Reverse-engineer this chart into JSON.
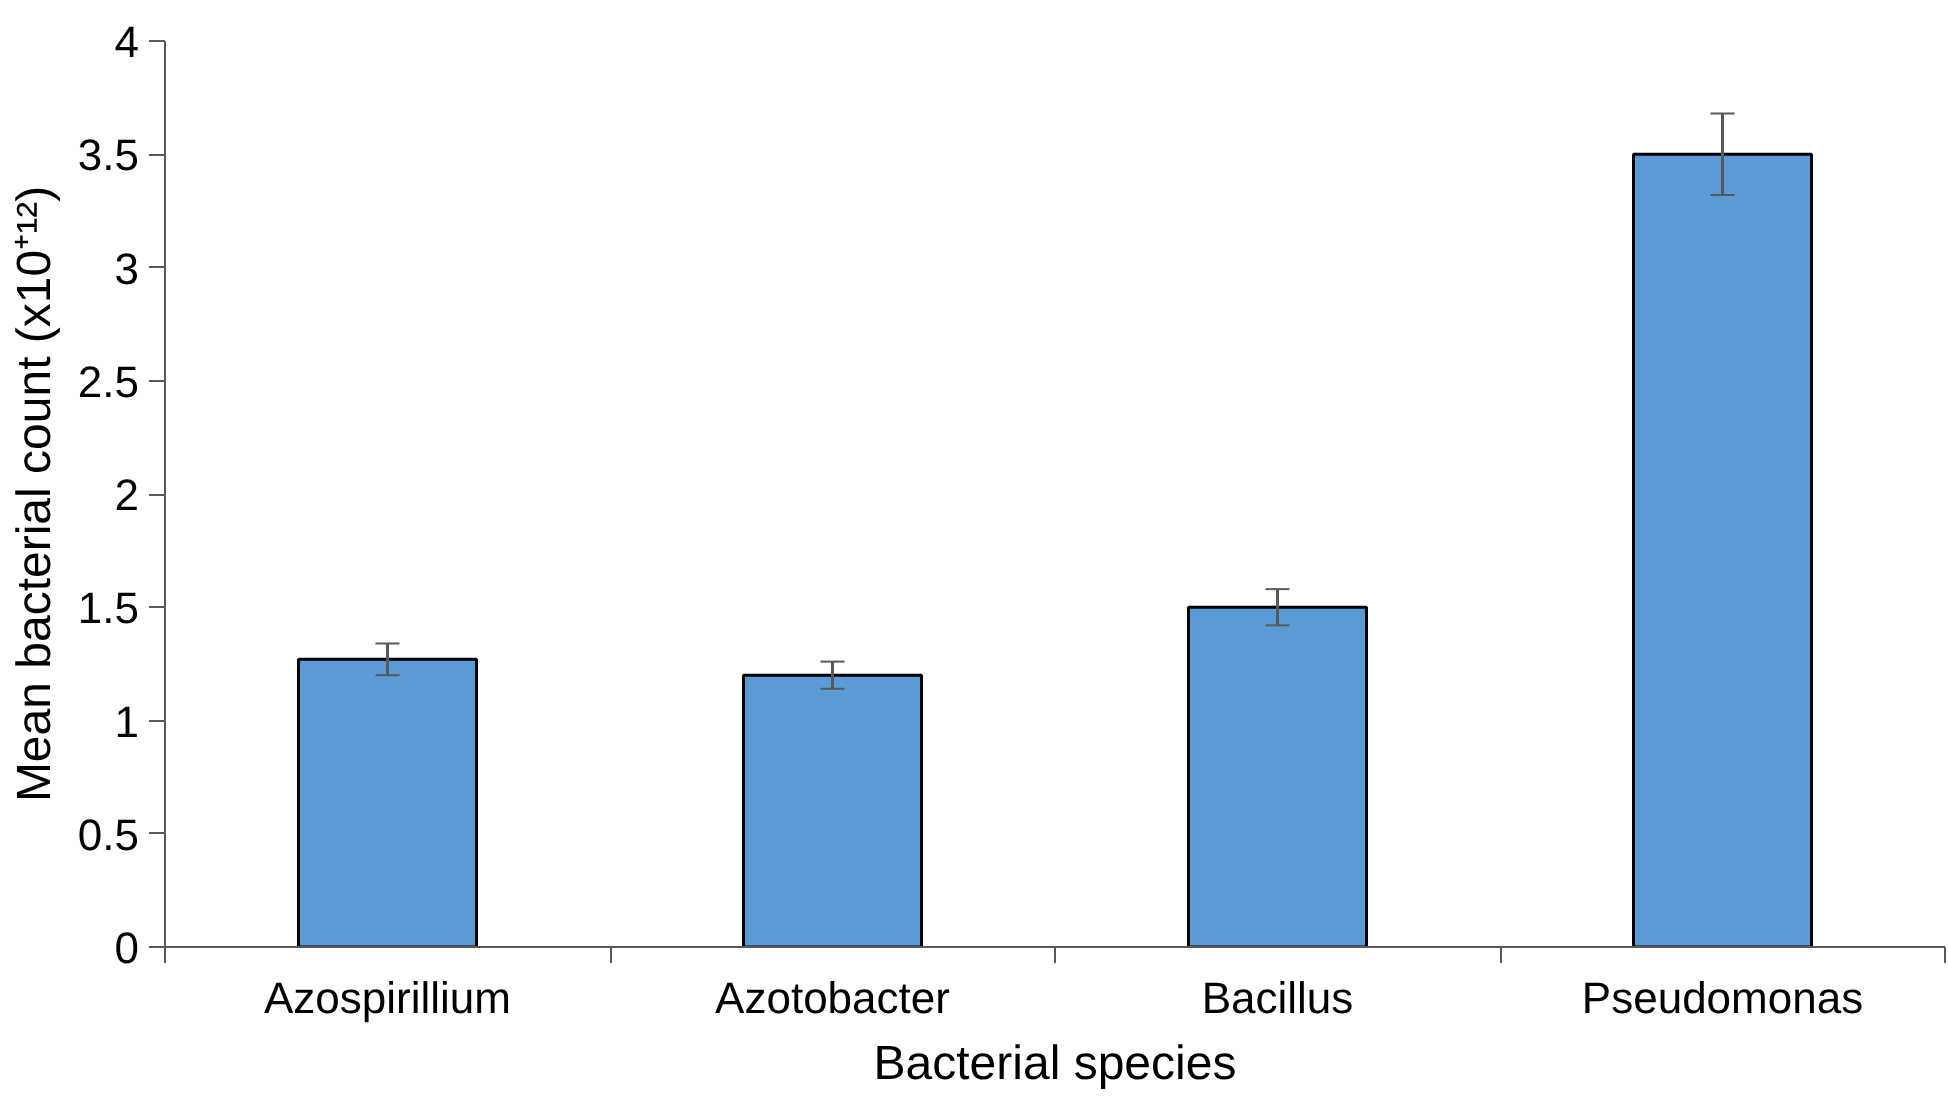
{
  "chart_data": {
    "type": "bar",
    "xlabel": "Bacterial species",
    "ylabel": "Mean bacterial count (x10⁺¹²)",
    "categories": [
      "Azospirillium",
      "Azotobacter",
      "Bacillus",
      "Pseudomonas"
    ],
    "values": [
      1.27,
      1.2,
      1.5,
      3.5
    ],
    "errors": [
      0.07,
      0.06,
      0.08,
      0.18
    ],
    "color": "#5b9bd5",
    "ylim": [
      0,
      4
    ],
    "yticks": [
      0,
      0.5,
      1,
      1.5,
      2,
      2.5,
      3,
      3.5,
      4
    ],
    "grid": false
  }
}
